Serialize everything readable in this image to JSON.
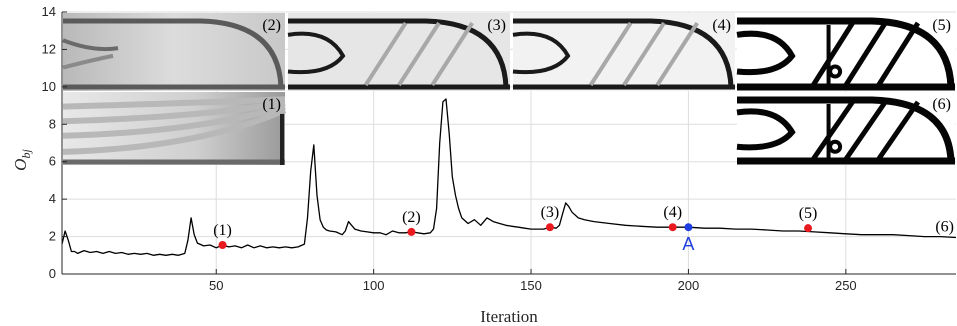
{
  "chart_data": {
    "type": "line",
    "title": "",
    "xlabel": "Iteration",
    "ylabel_main": "O",
    "ylabel_sub": "bj",
    "xlim": [
      1,
      285
    ],
    "ylim": [
      0,
      14
    ],
    "xticks": [
      50,
      100,
      150,
      200,
      250
    ],
    "yticks": [
      0,
      2,
      4,
      6,
      8,
      10,
      12,
      14
    ],
    "grid": true,
    "line_color": "#000000",
    "series": [
      {
        "x": [
          1,
          2,
          3,
          4,
          5,
          6,
          8,
          10,
          12,
          14,
          16,
          18,
          20,
          22,
          24,
          26,
          28,
          30,
          32,
          34,
          36,
          38,
          40,
          41,
          42,
          43,
          44,
          46,
          48,
          50,
          52,
          54,
          56,
          58,
          60,
          62,
          64,
          66,
          68,
          70,
          72,
          74,
          76,
          78,
          79,
          80,
          81,
          82,
          83,
          84,
          85,
          86,
          88,
          90,
          91,
          92,
          93,
          94,
          96,
          98,
          100,
          102,
          104,
          106,
          108,
          110,
          112,
          114,
          116,
          118,
          119,
          120,
          121,
          122,
          123,
          124,
          125,
          126,
          127,
          128,
          130,
          132,
          134,
          136,
          138,
          140,
          142,
          144,
          146,
          148,
          150,
          152,
          154,
          156,
          158,
          159,
          160,
          161,
          162,
          163,
          165,
          167,
          170,
          175,
          180,
          185,
          190,
          195,
          200,
          205,
          210,
          215,
          220,
          225,
          230,
          235,
          240,
          245,
          250,
          255,
          260,
          265,
          270,
          275,
          280,
          285
        ],
        "y": [
          1.6,
          2.3,
          1.8,
          1.2,
          1.2,
          1.1,
          1.25,
          1.15,
          1.2,
          1.1,
          1.2,
          1.1,
          1.15,
          1.05,
          1.1,
          1.05,
          1.1,
          1.0,
          1.05,
          1.0,
          1.05,
          1.0,
          1.1,
          1.8,
          3.0,
          2.1,
          1.65,
          1.5,
          1.55,
          1.4,
          1.55,
          1.45,
          1.5,
          1.4,
          1.55,
          1.4,
          1.5,
          1.4,
          1.45,
          1.4,
          1.45,
          1.4,
          1.45,
          1.6,
          3.0,
          5.5,
          6.9,
          4.2,
          2.9,
          2.5,
          2.35,
          2.3,
          2.25,
          2.1,
          2.3,
          2.8,
          2.6,
          2.4,
          2.3,
          2.25,
          2.2,
          2.2,
          2.1,
          2.3,
          2.2,
          2.2,
          2.25,
          2.2,
          2.15,
          2.2,
          2.4,
          3.5,
          7.0,
          9.2,
          9.35,
          7.5,
          5.2,
          4.2,
          3.5,
          3.0,
          2.7,
          2.9,
          2.6,
          3.0,
          2.8,
          2.7,
          2.6,
          2.55,
          2.5,
          2.45,
          2.4,
          2.4,
          2.4,
          2.5,
          2.45,
          2.6,
          3.2,
          3.8,
          3.6,
          3.3,
          3.0,
          2.9,
          2.8,
          2.7,
          2.6,
          2.55,
          2.5,
          2.5,
          2.5,
          2.45,
          2.45,
          2.4,
          2.4,
          2.35,
          2.3,
          2.3,
          2.25,
          2.2,
          2.15,
          2.1,
          2.1,
          2.1,
          2.05,
          2.0,
          2.0,
          1.95
        ]
      }
    ],
    "annotations": [
      {
        "label": "(1)",
        "x": 52,
        "y": 1.55,
        "color": "#e8191f"
      },
      {
        "label": "(2)",
        "x": 112,
        "y": 2.25,
        "color": "#e8191f"
      },
      {
        "label": "(3)",
        "x": 156,
        "y": 2.5,
        "color": "#e8191f"
      },
      {
        "label": "(4)",
        "x": 195,
        "y": 2.5,
        "color": "#e8191f"
      },
      {
        "label": "A",
        "x": 200,
        "y": 2.5,
        "color": "#1f3ee0"
      },
      {
        "label": "(5)",
        "x": 238,
        "y": 2.45,
        "color": "#e8191f"
      },
      {
        "label": "(6)",
        "x": 285,
        "y": 1.95,
        "color": null
      }
    ],
    "insets": [
      {
        "label": "(2)",
        "stage": 2
      },
      {
        "label": "(3)",
        "stage": 3
      },
      {
        "label": "(4)",
        "stage": 4
      },
      {
        "label": "(5)",
        "stage": 5
      },
      {
        "label": "(1)",
        "stage": 1
      },
      {
        "label": "(6)",
        "stage": 6
      }
    ]
  }
}
